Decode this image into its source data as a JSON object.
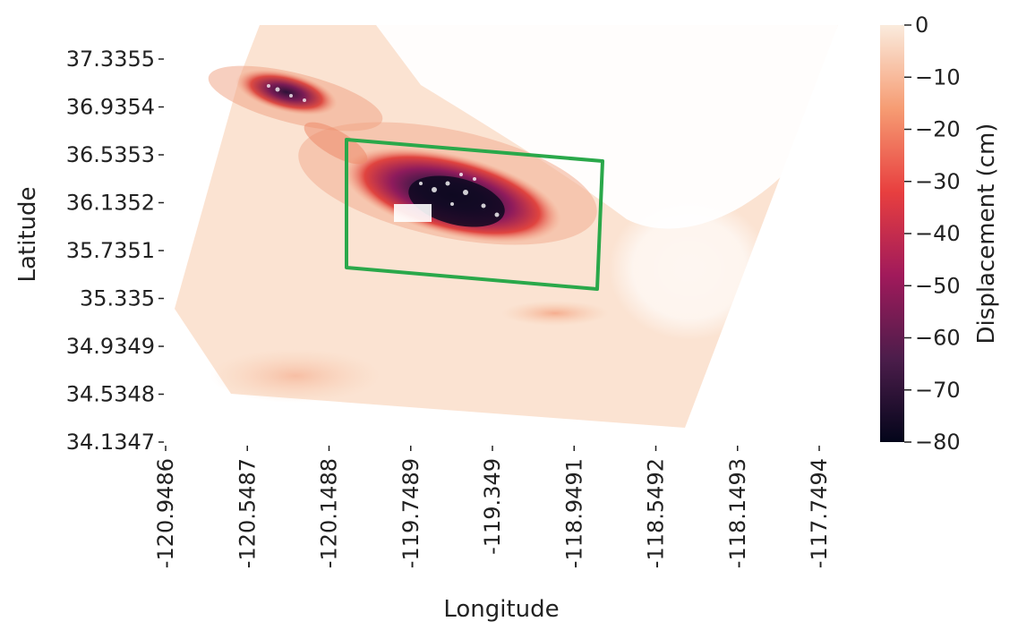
{
  "chart_data": {
    "type": "heatmap",
    "xlabel": "Longitude",
    "ylabel": "Latitude",
    "x_ticks": [
      "-120.9486",
      "-120.5487",
      "-120.1488",
      "-119.7489",
      "-119.349",
      "-118.9491",
      "-118.5492",
      "-118.1493",
      "-117.7494"
    ],
    "y_ticks": [
      "37.3355",
      "36.9354",
      "36.5353",
      "36.1352",
      "35.7351",
      "35.335",
      "34.9349",
      "34.5348",
      "34.1347"
    ],
    "colorbar": {
      "label": "Displacement (cm)",
      "min": -80,
      "max": 0,
      "ticks": [
        "0",
        "−10",
        "−20",
        "−30",
        "−40",
        "−50",
        "−60",
        "−70",
        "−80"
      ],
      "colors": [
        "#03051a",
        "#4c1d4b",
        "#a11a5b",
        "#e83f3f",
        "#f69c73",
        "#faebdd"
      ]
    },
    "subsidence_zones": [
      {
        "lon": -119.3,
        "lat": 36.1,
        "min_displacement": -80
      },
      {
        "lon": -120.6,
        "lat": 36.95,
        "min_displacement": -65
      }
    ],
    "annotation_box": {
      "color": "#2aa84a",
      "corners": [
        [
          -120.05,
          36.57
        ],
        [
          -118.8,
          36.39
        ],
        [
          -118.82,
          35.33
        ],
        [
          -120.05,
          35.53
        ]
      ]
    }
  }
}
